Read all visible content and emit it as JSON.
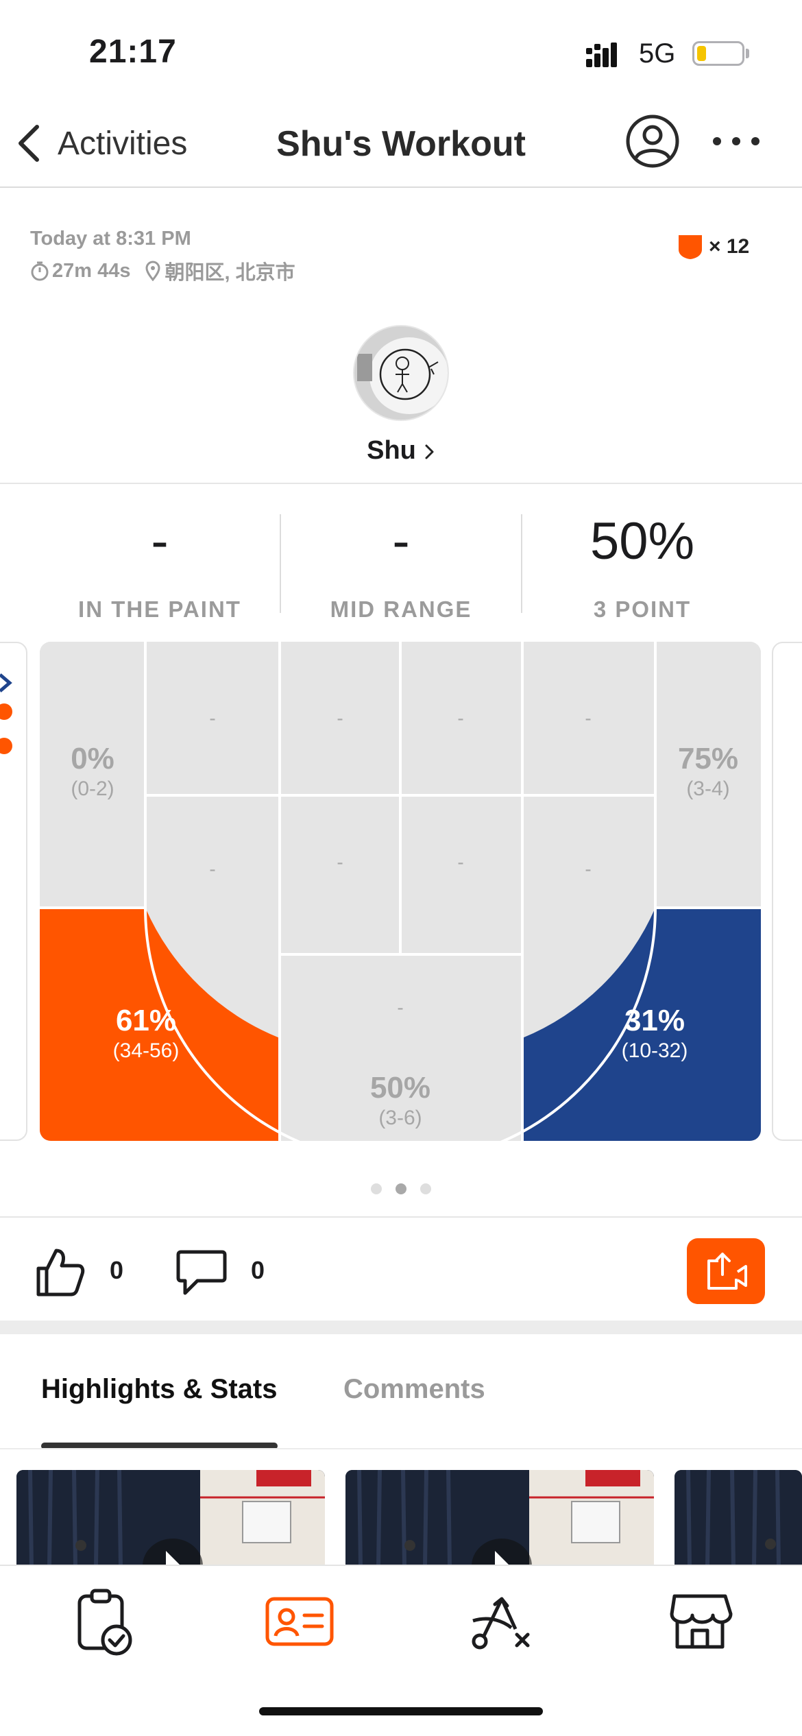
{
  "status_bar": {
    "time": "21:17",
    "network": "5G",
    "battery_level_fraction": 0.2,
    "battery_color": "#f5c400",
    "signal_icon": "signal-icon",
    "battery_icon": "battery-icon"
  },
  "nav": {
    "back_label": "Activities",
    "title": "Shu's Workout",
    "profile_icon": "profile-icon",
    "more_icon": "more-icon"
  },
  "header": {
    "date": "Today at 8:31 PM",
    "duration": "27m 44s",
    "location": "朝阳区, 北京市",
    "badge_count": "× 12",
    "badge_color": "#ff5500"
  },
  "user": {
    "name": "Shu"
  },
  "stats": [
    {
      "value": "-",
      "label": "IN THE PAINT"
    },
    {
      "value": "-",
      "label": "MID RANGE"
    },
    {
      "value": "50%",
      "label": "3 POINT"
    }
  ],
  "court": {
    "colors": {
      "hot": "#ff5500",
      "cold": "#1f448c",
      "neutral": "#e5e5e5"
    },
    "zones": {
      "left_corner": {
        "pct": "0%",
        "frac": "(0-2)"
      },
      "right_corner": {
        "pct": "75%",
        "frac": "(3-4)"
      },
      "left_wing": {
        "pct": "61%",
        "frac": "(34-56)"
      },
      "right_wing": {
        "pct": "31%",
        "frac": "(10-32)"
      },
      "top_key": {
        "pct": "50%",
        "frac": "(3-6)"
      },
      "empty_marker": "-"
    }
  },
  "pager": {
    "count": 3,
    "active": 2
  },
  "social": {
    "likes": "0",
    "comments": "0",
    "share_color": "#ff5500"
  },
  "tabs": [
    {
      "label": "Highlights & Stats",
      "active": true
    },
    {
      "label": "Comments",
      "active": false
    }
  ],
  "tabbar": [
    {
      "icon": "clipboard-check-icon",
      "active": false
    },
    {
      "icon": "id-card-icon",
      "active": true
    },
    {
      "icon": "play-diagram-icon",
      "active": false
    },
    {
      "icon": "store-icon",
      "active": false
    }
  ],
  "accent": "#ff5500"
}
